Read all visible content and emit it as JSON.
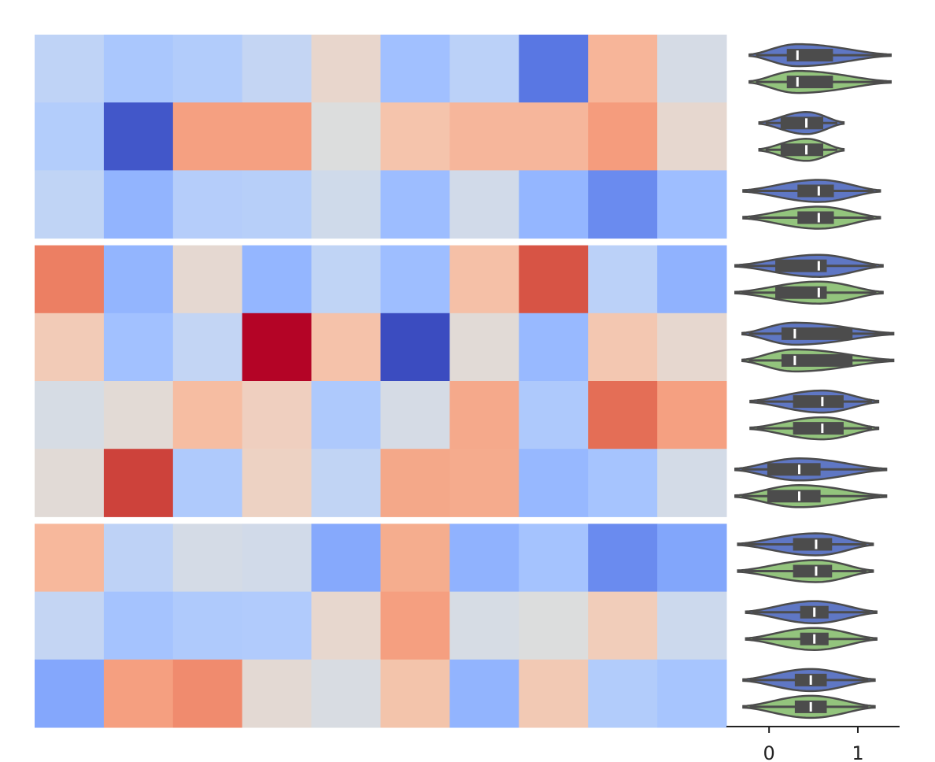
{
  "chart_data": [
    {
      "type": "heatmap",
      "row_groups": [
        3,
        4,
        3
      ],
      "cells": [
        [
          "#bfd3f6",
          "#aac7fd",
          "#b2ccfb",
          "#c4d5f3",
          "#e8d6cc",
          "#a1c0ff",
          "#bbd1f8",
          "#5977e3",
          "#f7b599",
          "#d5dbe5"
        ],
        [
          "#b3cdfb",
          "#4257c9",
          "#f5a081",
          "#f5a081",
          "#dcdddd",
          "#f5c4ac",
          "#f6b69b",
          "#f6b69b",
          "#f59c7d",
          "#e6d7cf"
        ],
        [
          "#c0d4f5",
          "#92b4fe",
          "#b5cdfa",
          "#b7cff9",
          "#cfdaea",
          "#9dbdff",
          "#d1dae9",
          "#94b6ff",
          "#6a8bef",
          "#9ebeff"
        ],
        [
          "#ec7f63",
          "#93b5fe",
          "#e5d8d1",
          "#94b6ff",
          "#c0d4f5",
          "#9ebeff",
          "#f5c0a7",
          "#d75445",
          "#bbd1f8",
          "#90b2fe"
        ],
        [
          "#f2cbb7",
          "#a2c1ff",
          "#c3d5f4",
          "#b40426",
          "#f5c2aa",
          "#3b4cc0",
          "#e1dad6",
          "#98b9ff",
          "#f3c7b1",
          "#e6d7cf"
        ],
        [
          "#d6dce4",
          "#e2dad5",
          "#f6bda2",
          "#efcfbf",
          "#aec9fc",
          "#d5dbe5",
          "#f5a98b",
          "#aec9fc",
          "#e46e56",
          "#f5a081"
        ],
        [
          "#e1dad6",
          "#cd423b",
          "#afcafc",
          "#edd2c3",
          "#c1d4f4",
          "#f4a889",
          "#f5ab8d",
          "#97b8ff",
          "#a6c4fe",
          "#d3dbe7"
        ],
        [
          "#f7b89c",
          "#bed2f6",
          "#d4dbe6",
          "#d1dae9",
          "#86a9fc",
          "#f5ad8e",
          "#90b2fe",
          "#a5c3fe",
          "#6a8bef",
          "#82a6fb"
        ],
        [
          "#c4d5f3",
          "#a5c3fe",
          "#afcafc",
          "#b1cbfc",
          "#e7d7ce",
          "#f59f80",
          "#d6dce4",
          "#dcdddd",
          "#f1cdba",
          "#ccd9ed"
        ],
        [
          "#84a7fc",
          "#f59f80",
          "#f08b6e",
          "#e3d9d3",
          "#d8dce2",
          "#f3c4ab",
          "#92b4fe",
          "#f2c9b4",
          "#b2ccfb",
          "#a7c5fe"
        ]
      ]
    },
    {
      "type": "violin",
      "xlim": [
        -0.48,
        1.47
      ],
      "xticks": [
        0,
        1
      ],
      "series": [
        {
          "color": "#5f77c4",
          "stats": [
            {
              "min": -0.22,
              "q1": 0.2,
              "median": 0.32,
              "q3": 0.72,
              "max": 1.37
            },
            {
              "min": -0.11,
              "q1": 0.13,
              "median": 0.42,
              "q3": 0.61,
              "max": 0.84
            },
            {
              "min": -0.29,
              "q1": 0.32,
              "median": 0.56,
              "q3": 0.73,
              "max": 1.25
            },
            {
              "min": -0.38,
              "q1": 0.07,
              "median": 0.56,
              "q3": 0.65,
              "max": 1.28
            },
            {
              "min": -0.3,
              "q1": 0.14,
              "median": 0.29,
              "q3": 0.94,
              "max": 1.4
            },
            {
              "min": -0.21,
              "q1": 0.27,
              "median": 0.6,
              "q3": 0.84,
              "max": 1.23
            },
            {
              "min": -0.38,
              "q1": -0.02,
              "median": 0.34,
              "q3": 0.58,
              "max": 1.32
            },
            {
              "min": -0.35,
              "q1": 0.27,
              "median": 0.53,
              "q3": 0.71,
              "max": 1.17
            },
            {
              "min": -0.26,
              "q1": 0.35,
              "median": 0.51,
              "q3": 0.67,
              "max": 1.21
            },
            {
              "min": -0.29,
              "q1": 0.29,
              "median": 0.47,
              "q3": 0.65,
              "max": 1.19
            }
          ]
        },
        {
          "color": "#93c47d",
          "stats": [
            {
              "min": -0.22,
              "q1": 0.2,
              "median": 0.32,
              "q3": 0.72,
              "max": 1.37
            },
            {
              "min": -0.11,
              "q1": 0.13,
              "median": 0.42,
              "q3": 0.61,
              "max": 0.84
            },
            {
              "min": -0.29,
              "q1": 0.32,
              "median": 0.56,
              "q3": 0.73,
              "max": 1.25
            },
            {
              "min": -0.38,
              "q1": 0.07,
              "median": 0.56,
              "q3": 0.65,
              "max": 1.28
            },
            {
              "min": -0.3,
              "q1": 0.14,
              "median": 0.29,
              "q3": 0.94,
              "max": 1.4
            },
            {
              "min": -0.21,
              "q1": 0.27,
              "median": 0.6,
              "q3": 0.84,
              "max": 1.23
            },
            {
              "min": -0.38,
              "q1": -0.02,
              "median": 0.34,
              "q3": 0.58,
              "max": 1.32
            },
            {
              "min": -0.35,
              "q1": 0.27,
              "median": 0.53,
              "q3": 0.71,
              "max": 1.17
            },
            {
              "min": -0.26,
              "q1": 0.35,
              "median": 0.51,
              "q3": 0.67,
              "max": 1.21
            },
            {
              "min": -0.29,
              "q1": 0.29,
              "median": 0.47,
              "q3": 0.65,
              "max": 1.19
            }
          ]
        }
      ]
    }
  ]
}
